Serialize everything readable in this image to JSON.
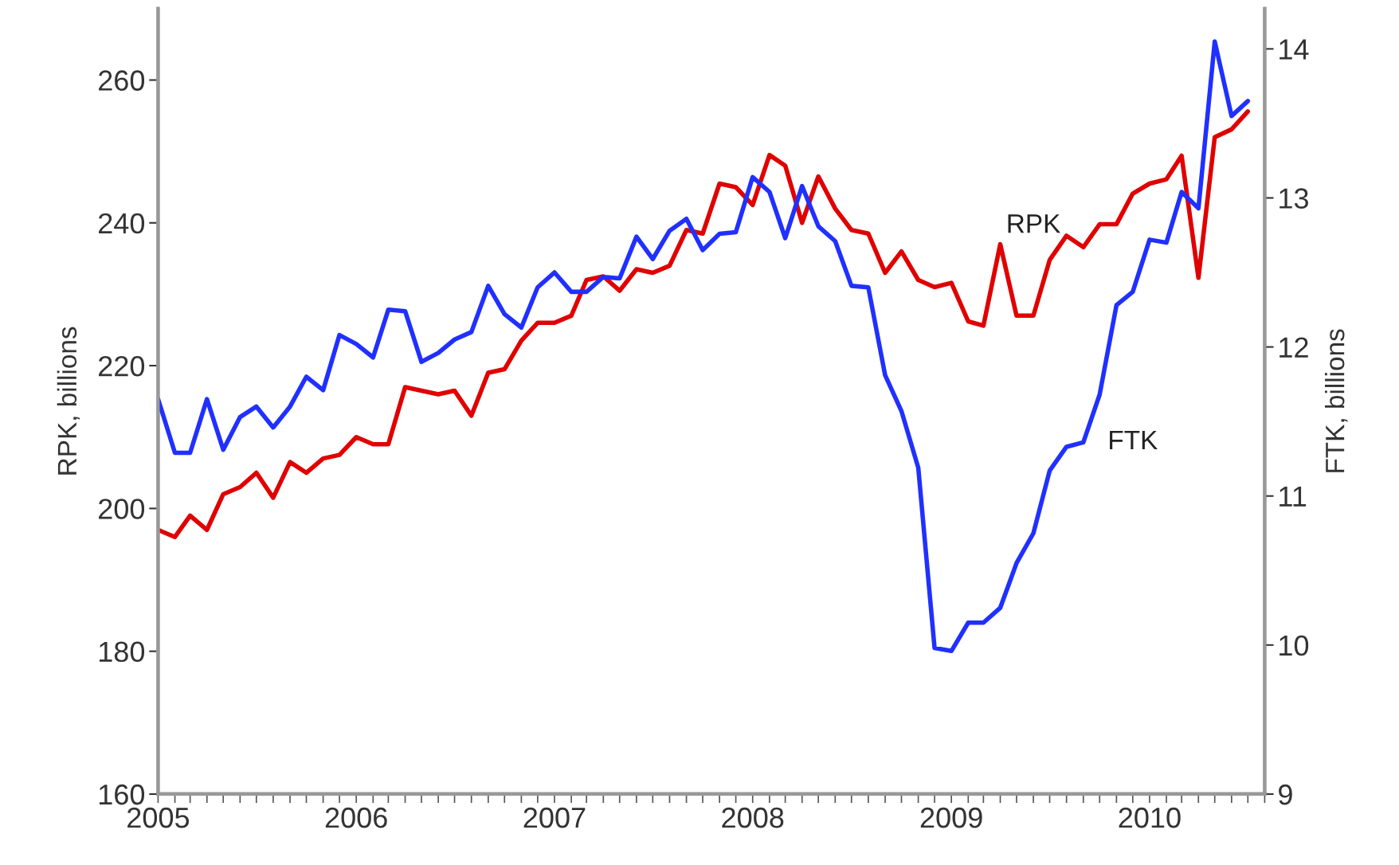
{
  "chart_data": {
    "type": "line",
    "ylabel": "RPK, billions",
    "y2label": "FTK, billions",
    "x": [
      "2005-01",
      "2005-02",
      "2005-03",
      "2005-04",
      "2005-05",
      "2005-06",
      "2005-07",
      "2005-08",
      "2005-09",
      "2005-10",
      "2005-11",
      "2005-12",
      "2006-01",
      "2006-02",
      "2006-03",
      "2006-04",
      "2006-05",
      "2006-06",
      "2006-07",
      "2006-08",
      "2006-09",
      "2006-10",
      "2006-11",
      "2006-12",
      "2007-01",
      "2007-02",
      "2007-03",
      "2007-04",
      "2007-05",
      "2007-06",
      "2007-07",
      "2007-08",
      "2007-09",
      "2007-10",
      "2007-11",
      "2007-12",
      "2008-01",
      "2008-02",
      "2008-03",
      "2008-04",
      "2008-05",
      "2008-06",
      "2008-07",
      "2008-08",
      "2008-09",
      "2008-10",
      "2008-11",
      "2008-12",
      "2009-01",
      "2009-02",
      "2009-03",
      "2009-04",
      "2009-05",
      "2009-06",
      "2009-07",
      "2009-08",
      "2009-09",
      "2009-10",
      "2009-11",
      "2009-12",
      "2010-01",
      "2010-02",
      "2010-03",
      "2010-04",
      "2010-05",
      "2010-06",
      "2010-07"
    ],
    "series": [
      {
        "name": "RPK",
        "color": "#e00000",
        "values": [
          197,
          196,
          199,
          197,
          202,
          203,
          205,
          201.5,
          206.5,
          205,
          207,
          207.5,
          210,
          209,
          209,
          217,
          216.5,
          216,
          216.5,
          213,
          219,
          219.5,
          223.5,
          226,
          226,
          227,
          232,
          232.5,
          230.5,
          233.5,
          233,
          234,
          239,
          238.5,
          245.5,
          245,
          242.5,
          249.5,
          248,
          240,
          246.5,
          242,
          239,
          238.5,
          233,
          236,
          232,
          231,
          231.6,
          226.2,
          225.6,
          237,
          227,
          227,
          234.8,
          238.2,
          236.6,
          239.8,
          239.8,
          244.1,
          245.5,
          246.1,
          249.4,
          232.3,
          252,
          253.1,
          255.6
        ]
      },
      {
        "name": "FTK",
        "color": "#2030ff",
        "axis": "y2",
        "values": [
          11.65,
          11.29,
          11.29,
          11.65,
          11.31,
          11.53,
          11.6,
          11.46,
          11.6,
          11.8,
          11.71,
          12.08,
          12.02,
          11.93,
          12.25,
          12.24,
          11.9,
          11.96,
          12.05,
          12.1,
          12.41,
          12.22,
          12.13,
          12.4,
          12.5,
          12.37,
          12.37,
          12.47,
          12.46,
          12.74,
          12.59,
          12.78,
          12.86,
          12.65,
          12.76,
          12.77,
          13.14,
          13.04,
          12.73,
          13.08,
          12.81,
          12.71,
          12.41,
          12.4,
          11.81,
          11.57,
          11.19,
          9.98,
          9.96,
          10.15,
          10.15,
          10.25,
          10.55,
          10.75,
          11.17,
          11.33,
          11.36,
          11.68,
          12.28,
          12.37,
          12.72,
          12.7,
          13.04,
          12.93,
          14.05,
          13.55,
          13.65
        ]
      }
    ],
    "xlim": [
      "2005-01",
      "2010-08"
    ],
    "xticks": [
      "2005",
      {
        "value": "2005-02",
        "label": null
      },
      {
        "value": "2005-03",
        "label": null
      },
      {
        "value": "2005-04",
        "label": null
      },
      {
        "value": "2005-05",
        "label": null
      },
      {
        "value": "2005-06",
        "label": null
      },
      {
        "value": "2005-07",
        "label": null
      },
      {
        "value": "2005-08",
        "label": null
      },
      {
        "value": "2005-09",
        "label": null
      },
      {
        "value": "2005-10",
        "label": null
      },
      {
        "value": "2005-11",
        "label": null
      },
      {
        "value": "2005-12",
        "label": null
      },
      "2006",
      {
        "value": "2006-02",
        "label": null
      },
      {
        "value": "2006-03",
        "label": null
      },
      {
        "value": "2006-04",
        "label": null
      },
      {
        "value": "2006-05",
        "label": null
      },
      {
        "value": "2006-06",
        "label": null
      },
      {
        "value": "2006-07",
        "label": null
      },
      {
        "value": "2006-08",
        "label": null
      },
      {
        "value": "2006-09",
        "label": null
      },
      {
        "value": "2006-10",
        "label": null
      },
      {
        "value": "2006-11",
        "label": null
      },
      {
        "value": "2006-12",
        "label": null
      },
      "2007",
      {
        "value": "2007-02",
        "label": null
      },
      {
        "value": "2007-03",
        "label": null
      },
      {
        "value": "2007-04",
        "label": null
      },
      {
        "value": "2007-05",
        "label": null
      },
      {
        "value": "2007-06",
        "label": null
      },
      {
        "value": "2007-07",
        "label": null
      },
      {
        "value": "2007-08",
        "label": null
      },
      {
        "value": "2007-09",
        "label": null
      },
      {
        "value": "2007-10",
        "label": null
      },
      {
        "value": "2007-11",
        "label": null
      },
      {
        "value": "2007-12",
        "label": null
      },
      "2008",
      {
        "value": "2008-02",
        "label": null
      },
      {
        "value": "2008-03",
        "label": null
      },
      {
        "value": "2008-04",
        "label": null
      },
      {
        "value": "2008-05",
        "label": null
      },
      {
        "value": "2008-06",
        "label": null
      },
      {
        "value": "2008-07",
        "label": null
      },
      {
        "value": "2008-08",
        "label": null
      },
      {
        "value": "2008-09",
        "label": null
      },
      {
        "value": "2008-10",
        "label": null
      },
      {
        "value": "2008-11",
        "label": null
      },
      {
        "value": "2008-12",
        "label": null
      },
      "2009",
      {
        "value": "2009-02",
        "label": null
      },
      {
        "value": "2009-03",
        "label": null
      },
      {
        "value": "2009-04",
        "label": null
      },
      {
        "value": "2009-05",
        "label": null
      },
      {
        "value": "2009-06",
        "label": null
      },
      {
        "value": "2009-07",
        "label": null
      },
      {
        "value": "2009-08",
        "label": null
      },
      {
        "value": "2009-09",
        "label": null
      },
      {
        "value": "2009-10",
        "label": null
      },
      {
        "value": "2009-11",
        "label": null
      },
      {
        "value": "2009-12",
        "label": null
      },
      "2010",
      {
        "value": "2010-02",
        "label": null
      },
      {
        "value": "2010-03",
        "label": null
      },
      {
        "value": "2010-04",
        "label": null
      },
      {
        "value": "2010-05",
        "label": null
      },
      {
        "value": "2010-06",
        "label": null
      },
      {
        "value": "2010-07",
        "label": null
      },
      {
        "value": "2010-08",
        "label": null
      }
    ],
    "ylim": [
      160,
      270
    ],
    "yticks": [
      160,
      180,
      200,
      220,
      240,
      260
    ],
    "y2lim": [
      9,
      14.27
    ],
    "y2ticks": [
      9,
      10,
      11,
      12,
      13,
      14
    ],
    "grid": false,
    "legend": false,
    "line_style": "solid",
    "marker": "none"
  }
}
